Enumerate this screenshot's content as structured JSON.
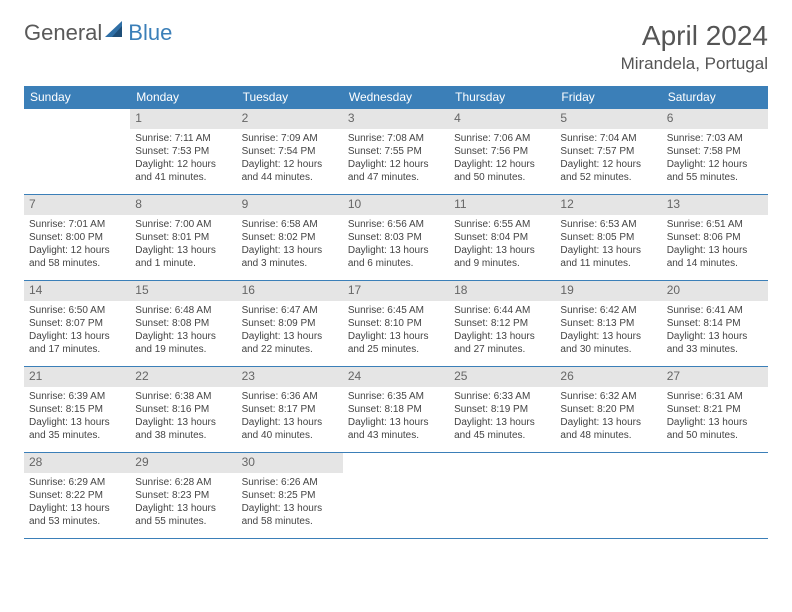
{
  "logo": {
    "word1": "General",
    "word2": "Blue",
    "sail_color": "#2f6fa6",
    "sail_color_dark": "#1f4e78"
  },
  "title": "April 2024",
  "location": "Mirandela, Portugal",
  "colors": {
    "header_bg": "#3b7fb8",
    "header_fg": "#ffffff",
    "daynum_bg": "#e5e5e5",
    "border": "#3b7fb8"
  },
  "day_names": [
    "Sunday",
    "Monday",
    "Tuesday",
    "Wednesday",
    "Thursday",
    "Friday",
    "Saturday"
  ],
  "weeks": [
    [
      null,
      {
        "n": "1",
        "sr": "Sunrise: 7:11 AM",
        "ss": "Sunset: 7:53 PM",
        "d1": "Daylight: 12 hours",
        "d2": "and 41 minutes."
      },
      {
        "n": "2",
        "sr": "Sunrise: 7:09 AM",
        "ss": "Sunset: 7:54 PM",
        "d1": "Daylight: 12 hours",
        "d2": "and 44 minutes."
      },
      {
        "n": "3",
        "sr": "Sunrise: 7:08 AM",
        "ss": "Sunset: 7:55 PM",
        "d1": "Daylight: 12 hours",
        "d2": "and 47 minutes."
      },
      {
        "n": "4",
        "sr": "Sunrise: 7:06 AM",
        "ss": "Sunset: 7:56 PM",
        "d1": "Daylight: 12 hours",
        "d2": "and 50 minutes."
      },
      {
        "n": "5",
        "sr": "Sunrise: 7:04 AM",
        "ss": "Sunset: 7:57 PM",
        "d1": "Daylight: 12 hours",
        "d2": "and 52 minutes."
      },
      {
        "n": "6",
        "sr": "Sunrise: 7:03 AM",
        "ss": "Sunset: 7:58 PM",
        "d1": "Daylight: 12 hours",
        "d2": "and 55 minutes."
      }
    ],
    [
      {
        "n": "7",
        "sr": "Sunrise: 7:01 AM",
        "ss": "Sunset: 8:00 PM",
        "d1": "Daylight: 12 hours",
        "d2": "and 58 minutes."
      },
      {
        "n": "8",
        "sr": "Sunrise: 7:00 AM",
        "ss": "Sunset: 8:01 PM",
        "d1": "Daylight: 13 hours",
        "d2": "and 1 minute."
      },
      {
        "n": "9",
        "sr": "Sunrise: 6:58 AM",
        "ss": "Sunset: 8:02 PM",
        "d1": "Daylight: 13 hours",
        "d2": "and 3 minutes."
      },
      {
        "n": "10",
        "sr": "Sunrise: 6:56 AM",
        "ss": "Sunset: 8:03 PM",
        "d1": "Daylight: 13 hours",
        "d2": "and 6 minutes."
      },
      {
        "n": "11",
        "sr": "Sunrise: 6:55 AM",
        "ss": "Sunset: 8:04 PM",
        "d1": "Daylight: 13 hours",
        "d2": "and 9 minutes."
      },
      {
        "n": "12",
        "sr": "Sunrise: 6:53 AM",
        "ss": "Sunset: 8:05 PM",
        "d1": "Daylight: 13 hours",
        "d2": "and 11 minutes."
      },
      {
        "n": "13",
        "sr": "Sunrise: 6:51 AM",
        "ss": "Sunset: 8:06 PM",
        "d1": "Daylight: 13 hours",
        "d2": "and 14 minutes."
      }
    ],
    [
      {
        "n": "14",
        "sr": "Sunrise: 6:50 AM",
        "ss": "Sunset: 8:07 PM",
        "d1": "Daylight: 13 hours",
        "d2": "and 17 minutes."
      },
      {
        "n": "15",
        "sr": "Sunrise: 6:48 AM",
        "ss": "Sunset: 8:08 PM",
        "d1": "Daylight: 13 hours",
        "d2": "and 19 minutes."
      },
      {
        "n": "16",
        "sr": "Sunrise: 6:47 AM",
        "ss": "Sunset: 8:09 PM",
        "d1": "Daylight: 13 hours",
        "d2": "and 22 minutes."
      },
      {
        "n": "17",
        "sr": "Sunrise: 6:45 AM",
        "ss": "Sunset: 8:10 PM",
        "d1": "Daylight: 13 hours",
        "d2": "and 25 minutes."
      },
      {
        "n": "18",
        "sr": "Sunrise: 6:44 AM",
        "ss": "Sunset: 8:12 PM",
        "d1": "Daylight: 13 hours",
        "d2": "and 27 minutes."
      },
      {
        "n": "19",
        "sr": "Sunrise: 6:42 AM",
        "ss": "Sunset: 8:13 PM",
        "d1": "Daylight: 13 hours",
        "d2": "and 30 minutes."
      },
      {
        "n": "20",
        "sr": "Sunrise: 6:41 AM",
        "ss": "Sunset: 8:14 PM",
        "d1": "Daylight: 13 hours",
        "d2": "and 33 minutes."
      }
    ],
    [
      {
        "n": "21",
        "sr": "Sunrise: 6:39 AM",
        "ss": "Sunset: 8:15 PM",
        "d1": "Daylight: 13 hours",
        "d2": "and 35 minutes."
      },
      {
        "n": "22",
        "sr": "Sunrise: 6:38 AM",
        "ss": "Sunset: 8:16 PM",
        "d1": "Daylight: 13 hours",
        "d2": "and 38 minutes."
      },
      {
        "n": "23",
        "sr": "Sunrise: 6:36 AM",
        "ss": "Sunset: 8:17 PM",
        "d1": "Daylight: 13 hours",
        "d2": "and 40 minutes."
      },
      {
        "n": "24",
        "sr": "Sunrise: 6:35 AM",
        "ss": "Sunset: 8:18 PM",
        "d1": "Daylight: 13 hours",
        "d2": "and 43 minutes."
      },
      {
        "n": "25",
        "sr": "Sunrise: 6:33 AM",
        "ss": "Sunset: 8:19 PM",
        "d1": "Daylight: 13 hours",
        "d2": "and 45 minutes."
      },
      {
        "n": "26",
        "sr": "Sunrise: 6:32 AM",
        "ss": "Sunset: 8:20 PM",
        "d1": "Daylight: 13 hours",
        "d2": "and 48 minutes."
      },
      {
        "n": "27",
        "sr": "Sunrise: 6:31 AM",
        "ss": "Sunset: 8:21 PM",
        "d1": "Daylight: 13 hours",
        "d2": "and 50 minutes."
      }
    ],
    [
      {
        "n": "28",
        "sr": "Sunrise: 6:29 AM",
        "ss": "Sunset: 8:22 PM",
        "d1": "Daylight: 13 hours",
        "d2": "and 53 minutes."
      },
      {
        "n": "29",
        "sr": "Sunrise: 6:28 AM",
        "ss": "Sunset: 8:23 PM",
        "d1": "Daylight: 13 hours",
        "d2": "and 55 minutes."
      },
      {
        "n": "30",
        "sr": "Sunrise: 6:26 AM",
        "ss": "Sunset: 8:25 PM",
        "d1": "Daylight: 13 hours",
        "d2": "and 58 minutes."
      },
      null,
      null,
      null,
      null
    ]
  ]
}
